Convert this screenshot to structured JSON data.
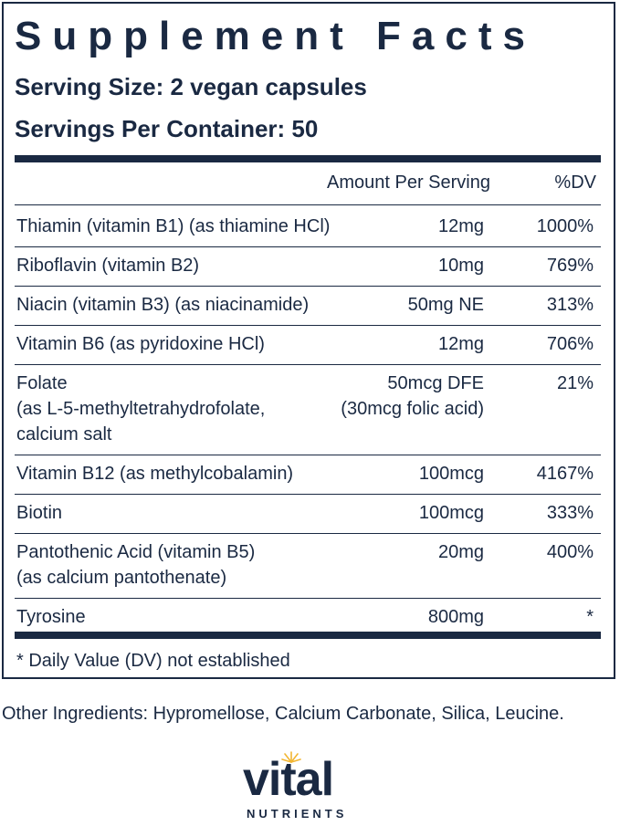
{
  "facts": {
    "title": "Supplement Facts",
    "serving_size": "Serving Size: 2 vegan capsules",
    "servings_per_container": "Servings Per Container: 50",
    "col_amount": "Amount Per Serving",
    "col_dv": "%DV",
    "rows": [
      {
        "name": [
          "Thiamin (vitamin B1) (as thiamine HCl)"
        ],
        "amount": [
          "12mg"
        ],
        "dv": "1000%"
      },
      {
        "name": [
          "Riboflavin (vitamin B2)"
        ],
        "amount": [
          "10mg"
        ],
        "dv": "769%"
      },
      {
        "name": [
          "Niacin (vitamin B3) (as niacinamide)"
        ],
        "amount": [
          "50mg NE"
        ],
        "dv": "313%"
      },
      {
        "name": [
          "Vitamin B6 (as pyridoxine HCl)"
        ],
        "amount": [
          "12mg"
        ],
        "dv": "706%"
      },
      {
        "name": [
          "Folate",
          "(as L-5-methyltetrahydrofolate,",
          "calcium salt"
        ],
        "amount": [
          "50mcg DFE",
          "(30mcg folic acid)"
        ],
        "dv": "21%"
      },
      {
        "name": [
          "Vitamin B12 (as methylcobalamin)"
        ],
        "amount": [
          "100mcg"
        ],
        "dv": "4167%"
      },
      {
        "name": [
          "Biotin"
        ],
        "amount": [
          "100mcg"
        ],
        "dv": "333%"
      },
      {
        "name": [
          "Pantothenic Acid (vitamin B5)",
          "(as calcium pantothenate)"
        ],
        "amount": [
          "20mg"
        ],
        "dv": "400%"
      },
      {
        "name": [
          "Tyrosine"
        ],
        "amount": [
          "800mg"
        ],
        "dv": "*"
      }
    ],
    "footnote": "* Daily Value (DV) not established"
  },
  "other_ingredients": "Other Ingredients: Hypromellose, Calcium Carbonate, Silica, Leucine.",
  "logo": {
    "word": "vital",
    "sub": "NUTRIENTS",
    "brand_color": "#1a2942",
    "sun_color": "#f2b632"
  }
}
